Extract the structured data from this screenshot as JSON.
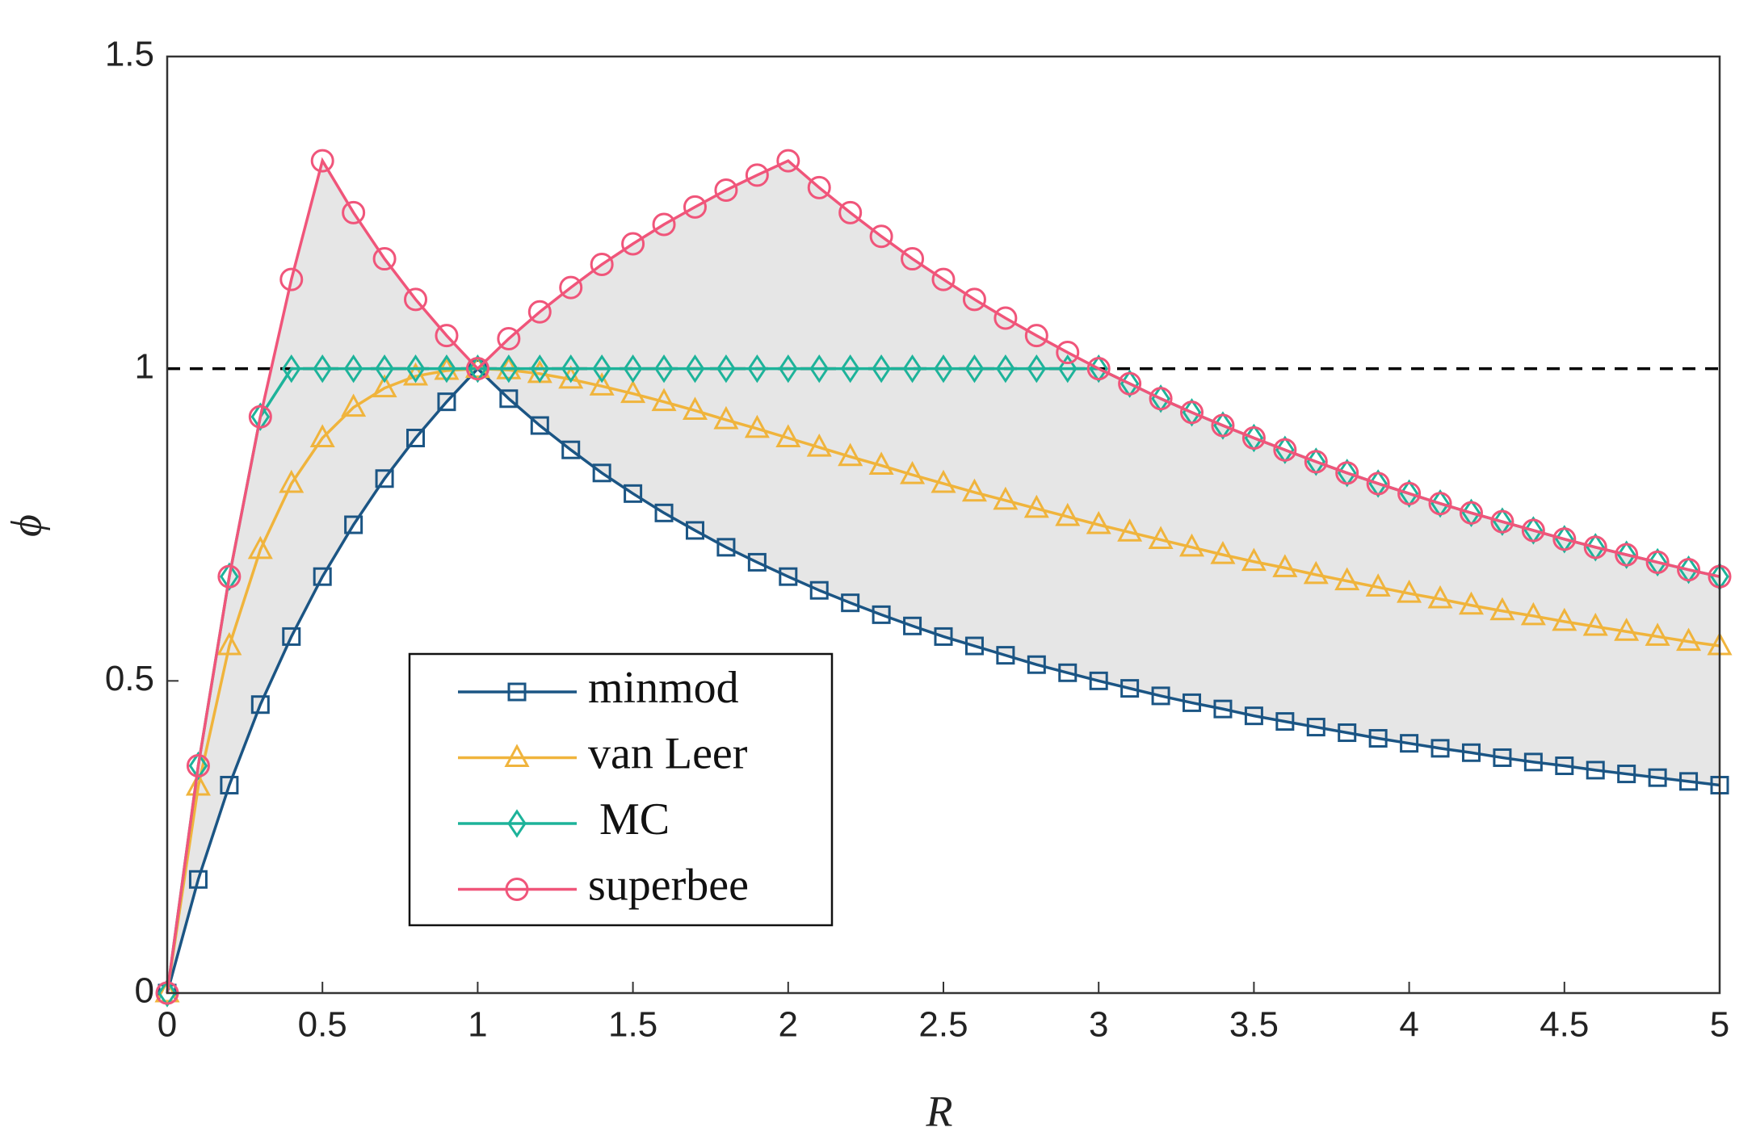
{
  "chart_data": {
    "type": "line",
    "x_label": "R",
    "y_label": "ϕ",
    "x": [
      0,
      0.1,
      0.2,
      0.3,
      0.4,
      0.5,
      0.6,
      0.7,
      0.8,
      0.9,
      1,
      1.1,
      1.2,
      1.3,
      1.4,
      1.5,
      1.6,
      1.7,
      1.8,
      1.9,
      2,
      2.1,
      2.2,
      2.3,
      2.4,
      2.5,
      2.6,
      2.7,
      2.8,
      2.9,
      3,
      3.1,
      3.2,
      3.3,
      3.4,
      3.5,
      3.6,
      3.7,
      3.8,
      3.9,
      4,
      4.1,
      4.2,
      4.3,
      4.4,
      4.5,
      4.6,
      4.7,
      4.8,
      4.9,
      5
    ],
    "series": [
      {
        "name": "minmod",
        "color": "#1b5584",
        "marker": "square",
        "values": [
          0,
          0.182,
          0.333,
          0.462,
          0.571,
          0.667,
          0.75,
          0.824,
          0.889,
          0.947,
          1,
          0.952,
          0.909,
          0.87,
          0.833,
          0.8,
          0.769,
          0.741,
          0.714,
          0.69,
          0.667,
          0.645,
          0.625,
          0.606,
          0.588,
          0.571,
          0.556,
          0.541,
          0.526,
          0.513,
          0.5,
          0.488,
          0.476,
          0.465,
          0.455,
          0.444,
          0.435,
          0.426,
          0.417,
          0.408,
          0.4,
          0.392,
          0.385,
          0.377,
          0.37,
          0.364,
          0.357,
          0.351,
          0.345,
          0.339,
          0.333
        ]
      },
      {
        "name": "van Leer",
        "color": "#f0b43c",
        "marker": "triangle",
        "values": [
          0,
          0.331,
          0.556,
          0.71,
          0.816,
          0.889,
          0.938,
          0.969,
          0.988,
          0.997,
          1,
          0.998,
          0.992,
          0.983,
          0.972,
          0.96,
          0.947,
          0.933,
          0.918,
          0.904,
          0.889,
          0.874,
          0.859,
          0.845,
          0.83,
          0.816,
          0.802,
          0.789,
          0.776,
          0.763,
          0.75,
          0.738,
          0.726,
          0.714,
          0.702,
          0.691,
          0.681,
          0.67,
          0.66,
          0.65,
          0.64,
          0.631,
          0.621,
          0.612,
          0.604,
          0.595,
          0.587,
          0.579,
          0.571,
          0.563,
          0.556
        ]
      },
      {
        "name": " MC",
        "color": "#1db39a",
        "marker": "diamond",
        "values": [
          0,
          0.364,
          0.667,
          0.923,
          1,
          1,
          1,
          1,
          1,
          1,
          1,
          1,
          1,
          1,
          1,
          1,
          1,
          1,
          1,
          1,
          1,
          1,
          1,
          1,
          1,
          1,
          1,
          1,
          1,
          1,
          1,
          0.976,
          0.952,
          0.93,
          0.909,
          0.889,
          0.87,
          0.851,
          0.833,
          0.816,
          0.8,
          0.784,
          0.769,
          0.755,
          0.741,
          0.727,
          0.714,
          0.702,
          0.69,
          0.678,
          0.667
        ]
      },
      {
        "name": "superbee",
        "color": "#f0557a",
        "marker": "circle",
        "values": [
          0,
          0.364,
          0.667,
          0.923,
          1.143,
          1.333,
          1.25,
          1.176,
          1.111,
          1.053,
          1,
          1.048,
          1.091,
          1.13,
          1.167,
          1.2,
          1.231,
          1.259,
          1.286,
          1.31,
          1.333,
          1.29,
          1.25,
          1.212,
          1.176,
          1.143,
          1.111,
          1.081,
          1.053,
          1.026,
          1,
          0.976,
          0.952,
          0.93,
          0.909,
          0.889,
          0.87,
          0.851,
          0.833,
          0.816,
          0.8,
          0.784,
          0.769,
          0.755,
          0.741,
          0.727,
          0.714,
          0.702,
          0.69,
          0.678,
          0.667
        ]
      }
    ],
    "reference_line": 1,
    "xlim": [
      0,
      5
    ],
    "xticks": [
      0,
      0.5,
      1,
      1.5,
      2,
      2.5,
      3,
      3.5,
      4,
      4.5,
      5
    ],
    "ylim": [
      0,
      1.5
    ],
    "yticks": [
      0,
      0.5,
      1,
      1.5
    ],
    "fill_between": "#e6e6e6"
  }
}
